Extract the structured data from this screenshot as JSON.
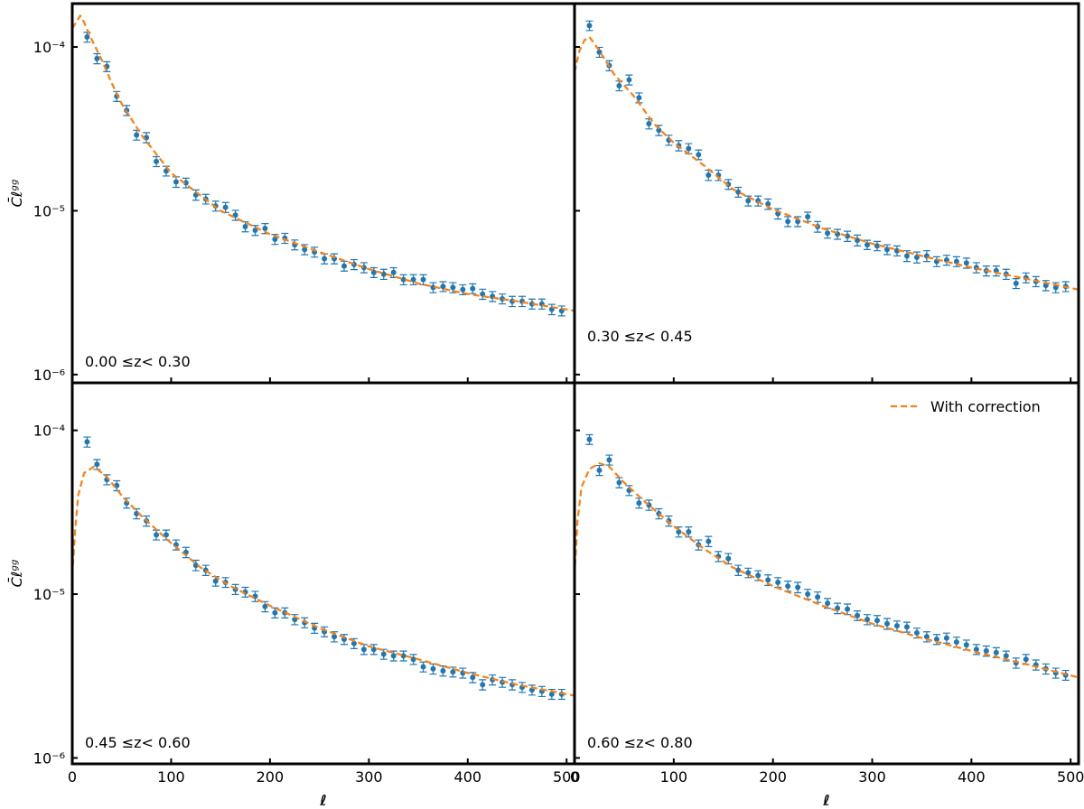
{
  "chart_data": [
    {
      "type": "scatter",
      "annotation": "0.00 ≤z< 0.30",
      "ylabel": "C̄ℓᵍᵍ",
      "ylog": true,
      "xlim": [
        0,
        508
      ],
      "ylim": [
        8.9e-07,
        0.000184
      ],
      "xticks": [
        0,
        100,
        200,
        300,
        400,
        500
      ],
      "show_xtick_labels": false,
      "yticks": [
        {
          "value": 0.0001,
          "label": "10⁻⁴"
        },
        {
          "value": 1e-05,
          "label": "10⁻⁵"
        },
        {
          "value": 1e-06,
          "label": "10⁻⁶"
        }
      ],
      "series": [
        {
          "type": "scatter",
          "color": "#1f77b4",
          "x": [
            15,
            25,
            35,
            45,
            55,
            65,
            75,
            85,
            95,
            105,
            115,
            125,
            135,
            145,
            155,
            165,
            175,
            185,
            195,
            205,
            215,
            225,
            235,
            245,
            255,
            265,
            275,
            285,
            295,
            305,
            315,
            325,
            335,
            345,
            355,
            365,
            375,
            385,
            395,
            405,
            415,
            425,
            435,
            445,
            455,
            465,
            475,
            485,
            495
          ],
          "values": [
            0.000115,
            8.5e-05,
            7.6e-05,
            5e-05,
            4.1e-05,
            2.9e-05,
            2.8e-05,
            2e-05,
            1.75e-05,
            1.5e-05,
            1.48e-05,
            1.25e-05,
            1.18e-05,
            1.07e-05,
            1.05e-05,
            9.4e-06,
            8e-06,
            7.6e-06,
            7.8e-06,
            6.7e-06,
            6.8e-06,
            6.2e-06,
            5.8e-06,
            5.6e-06,
            5.1e-06,
            5.1e-06,
            4.6e-06,
            4.7e-06,
            4.5e-06,
            4.2e-06,
            4.1e-06,
            4.2e-06,
            3.8e-06,
            3.8e-06,
            3.8e-06,
            3.4e-06,
            3.45e-06,
            3.4e-06,
            3.3e-06,
            3.35e-06,
            3.1e-06,
            3e-06,
            2.9e-06,
            2.8e-06,
            2.8e-06,
            2.7e-06,
            2.7e-06,
            2.5e-06,
            2.45e-06
          ],
          "errors": [
            8e-06,
            6e-06,
            5.3e-06,
            3.5e-06,
            2.9e-06,
            2e-06,
            2e-06,
            1.4e-06,
            1.2e-06,
            1.1e-06,
            1e-06,
            9e-07,
            8e-07,
            7.5e-07,
            7.4e-07,
            6.6e-07,
            5.6e-07,
            5.3e-07,
            5.5e-07,
            4.7e-07,
            4.8e-07,
            4.3e-07,
            4.1e-07,
            3.9e-07,
            3.6e-07,
            3.6e-07,
            3.2e-07,
            3.3e-07,
            3.2e-07,
            2.9e-07,
            2.9e-07,
            2.9e-07,
            2.7e-07,
            2.7e-07,
            2.7e-07,
            2.4e-07,
            2.4e-07,
            2.4e-07,
            2.3e-07,
            2.3e-07,
            2.2e-07,
            2.1e-07,
            2e-07,
            2e-07,
            2e-07,
            1.9e-07,
            1.9e-07,
            1.8e-07,
            1.7e-07
          ]
        },
        {
          "type": "line",
          "color": "#ff7f0e",
          "dashed": true,
          "x": [
            0,
            8,
            10,
            20,
            30,
            40,
            50,
            70,
            100,
            150,
            200,
            250,
            300,
            350,
            400,
            450,
            508
          ],
          "values": [
            0.00013,
            0.000155,
            0.00015,
            0.00011,
            8.3e-05,
            6e-05,
            4.5e-05,
            2.9e-05,
            1.7e-05,
            1e-05,
            7.2e-06,
            5.6e-06,
            4.4e-06,
            3.6e-06,
            3.1e-06,
            2.8e-06,
            2.45e-06
          ]
        }
      ]
    },
    {
      "type": "scatter",
      "annotation": "0.30 ≤z< 0.45",
      "ylog": true,
      "xlim": [
        0,
        508
      ],
      "ylim": [
        8.9e-07,
        0.000184
      ],
      "xticks": [
        0,
        100,
        200,
        300,
        400,
        500
      ],
      "show_xtick_labels": false,
      "yticks": [
        0.0001,
        1e-05,
        1e-06
      ],
      "show_ytick_labels": false,
      "series": [
        {
          "type": "scatter",
          "color": "#1f77b4",
          "x": [
            15,
            25,
            35,
            45,
            55,
            65,
            75,
            85,
            95,
            105,
            115,
            125,
            135,
            145,
            155,
            165,
            175,
            185,
            195,
            205,
            215,
            225,
            235,
            245,
            255,
            265,
            275,
            285,
            295,
            305,
            315,
            325,
            335,
            345,
            355,
            365,
            375,
            385,
            395,
            405,
            415,
            425,
            435,
            445,
            455,
            465,
            475,
            485,
            495
          ],
          "values": [
            0.000135,
            9.3e-05,
            7.7e-05,
            5.8e-05,
            6.3e-05,
            4.9e-05,
            3.4e-05,
            3.1e-05,
            2.7e-05,
            2.5e-05,
            2.4e-05,
            2.2e-05,
            1.65e-05,
            1.65e-05,
            1.45e-05,
            1.3e-05,
            1.15e-05,
            1.15e-05,
            1.1e-05,
            9.6e-06,
            8.6e-06,
            8.6e-06,
            9.2e-06,
            8e-06,
            7.3e-06,
            7.2e-06,
            7e-06,
            6.6e-06,
            6.2e-06,
            6.1e-06,
            5.8e-06,
            5.7e-06,
            5.3e-06,
            5.2e-06,
            5.3e-06,
            4.9e-06,
            5e-06,
            4.9e-06,
            4.8e-06,
            4.5e-06,
            4.3e-06,
            4.3e-06,
            4.1e-06,
            3.6e-06,
            3.9e-06,
            3.7e-06,
            3.5e-06,
            3.4e-06,
            3.45e-06
          ],
          "errors": [
            9e-06,
            6.5e-06,
            5.4e-06,
            4e-06,
            4.4e-06,
            3.4e-06,
            2.4e-06,
            2.2e-06,
            1.9e-06,
            1.8e-06,
            1.7e-06,
            1.5e-06,
            1.2e-06,
            1.2e-06,
            1e-06,
            9e-07,
            8e-07,
            8e-07,
            8e-07,
            7e-07,
            6e-07,
            6e-07,
            6e-07,
            6e-07,
            5e-07,
            5e-07,
            5e-07,
            5e-07,
            4e-07,
            4e-07,
            4e-07,
            4e-07,
            4e-07,
            4e-07,
            4e-07,
            3.4e-07,
            3.5e-07,
            3.4e-07,
            3.4e-07,
            3.2e-07,
            3e-07,
            3e-07,
            2.9e-07,
            2.5e-07,
            2.7e-07,
            2.6e-07,
            2.5e-07,
            2.4e-07,
            2.4e-07
          ]
        },
        {
          "type": "line",
          "color": "#ff7f0e",
          "dashed": true,
          "x": [
            0,
            5,
            10,
            15,
            20,
            30,
            40,
            60,
            80,
            100,
            130,
            160,
            200,
            250,
            300,
            350,
            400,
            450,
            508
          ],
          "values": [
            7e-05,
            9.5e-05,
            0.00011,
            0.000115,
            0.000105,
            8.5e-05,
            6.8e-05,
            5e-05,
            3.4e-05,
            2.6e-05,
            1.9e-05,
            1.35e-05,
            1.02e-05,
            7.8e-06,
            6.3e-06,
            5.3e-06,
            4.5e-06,
            3.9e-06,
            3.3e-06
          ]
        }
      ]
    },
    {
      "type": "scatter",
      "annotation": "0.45 ≤z< 0.60",
      "ylabel": "C̄ℓᵍᵍ",
      "xlabel": "ℓ",
      "ylog": true,
      "xlim": [
        0,
        508
      ],
      "ylim": [
        9.2e-07,
        0.000195
      ],
      "xticks": [
        0,
        100,
        200,
        300,
        400,
        500
      ],
      "yticks": [
        {
          "value": 0.0001,
          "label": "10⁻⁴"
        },
        {
          "value": 1e-05,
          "label": "10⁻⁵"
        },
        {
          "value": 1e-06,
          "label": "10⁻⁶"
        }
      ],
      "series": [
        {
          "type": "scatter",
          "color": "#1f77b4",
          "x": [
            15,
            25,
            35,
            45,
            55,
            65,
            75,
            85,
            95,
            105,
            115,
            125,
            135,
            145,
            155,
            165,
            175,
            185,
            195,
            205,
            215,
            225,
            235,
            245,
            255,
            265,
            275,
            285,
            295,
            305,
            315,
            325,
            335,
            345,
            355,
            365,
            375,
            385,
            395,
            405,
            415,
            425,
            435,
            445,
            455,
            465,
            475,
            485,
            495
          ],
          "values": [
            8.5e-05,
            6.2e-05,
            5e-05,
            4.6e-05,
            3.6e-05,
            3.1e-05,
            2.8e-05,
            2.3e-05,
            2.3e-05,
            2e-05,
            1.8e-05,
            1.5e-05,
            1.4e-05,
            1.2e-05,
            1.18e-05,
            1.07e-05,
            1.03e-05,
            9.7e-06,
            8.4e-06,
            7.7e-06,
            7.7e-06,
            7e-06,
            6.7e-06,
            6.2e-06,
            5.9e-06,
            5.5e-06,
            5.3e-06,
            5e-06,
            4.6e-06,
            4.6e-06,
            4.3e-06,
            4.2e-06,
            4.2e-06,
            4e-06,
            3.6e-06,
            3.5e-06,
            3.4e-06,
            3.35e-06,
            3.3e-06,
            3.1e-06,
            2.8e-06,
            3e-06,
            2.9e-06,
            2.8e-06,
            2.7e-06,
            2.6e-06,
            2.55e-06,
            2.45e-06,
            2.45e-06
          ],
          "errors": [
            6e-06,
            4.3e-06,
            3.5e-06,
            3.2e-06,
            2.5e-06,
            2.2e-06,
            2e-06,
            1.6e-06,
            1.6e-06,
            1.4e-06,
            1.3e-06,
            1.1e-06,
            1e-06,
            8e-07,
            8e-07,
            7.5e-07,
            7e-07,
            7e-07,
            6e-07,
            5.4e-07,
            5.4e-07,
            5e-07,
            4.7e-07,
            4.3e-07,
            4.1e-07,
            3.9e-07,
            3.7e-07,
            3.5e-07,
            3.2e-07,
            3.2e-07,
            3e-07,
            2.9e-07,
            2.9e-07,
            2.8e-07,
            2.5e-07,
            2.5e-07,
            2.4e-07,
            2.3e-07,
            2.3e-07,
            2.2e-07,
            2e-07,
            2.1e-07,
            2e-07,
            2e-07,
            1.9e-07,
            1.8e-07,
            1.8e-07,
            1.7e-07,
            1.7e-07
          ]
        },
        {
          "type": "line",
          "color": "#ff7f0e",
          "dashed": true,
          "x": [
            0,
            3,
            6,
            12,
            22,
            35,
            50,
            70,
            100,
            130,
            160,
            200,
            250,
            300,
            350,
            400,
            450,
            508
          ],
          "values": [
            1.3e-05,
            2.5e-05,
            4e-05,
            5.5e-05,
            6e-05,
            5.2e-05,
            4e-05,
            3e-05,
            2.05e-05,
            1.45e-05,
            1.12e-05,
            8.5e-06,
            6.2e-06,
            4.8e-06,
            4e-06,
            3.3e-06,
            2.8e-06,
            2.4e-06
          ]
        }
      ]
    },
    {
      "type": "scatter",
      "annotation": "0.60 ≤z< 0.80",
      "xlabel": "ℓ",
      "ylog": true,
      "legend": "upper right",
      "xlim": [
        0,
        508
      ],
      "ylim": [
        9.2e-07,
        0.000195
      ],
      "xticks": [
        0,
        100,
        200,
        300,
        400,
        500
      ],
      "yticks": [
        0.0001,
        1e-05,
        1e-06
      ],
      "show_ytick_labels": false,
      "series": [
        {
          "type": "scatter",
          "color": "#1f77b4",
          "x": [
            15,
            25,
            35,
            45,
            55,
            65,
            75,
            85,
            95,
            105,
            115,
            125,
            135,
            145,
            155,
            165,
            175,
            185,
            195,
            205,
            215,
            225,
            235,
            245,
            255,
            265,
            275,
            285,
            295,
            305,
            315,
            325,
            335,
            345,
            355,
            365,
            375,
            385,
            395,
            405,
            415,
            425,
            435,
            445,
            455,
            465,
            475,
            485,
            495
          ],
          "values": [
            8.8e-05,
            5.7e-05,
            6.6e-05,
            4.8e-05,
            4.3e-05,
            3.6e-05,
            3.5e-05,
            3.1e-05,
            2.8e-05,
            2.4e-05,
            2.4e-05,
            2e-05,
            2.1e-05,
            1.7e-05,
            1.65e-05,
            1.4e-05,
            1.35e-05,
            1.3e-05,
            1.22e-05,
            1.18e-05,
            1.12e-05,
            1.1e-05,
            1e-05,
            9.6e-06,
            8.8e-06,
            8.2e-06,
            8.1e-06,
            7.4e-06,
            7e-06,
            6.9e-06,
            6.6e-06,
            6.4e-06,
            6.3e-06,
            5.8e-06,
            5.5e-06,
            5.3e-06,
            5.4e-06,
            5.1e-06,
            4.9e-06,
            4.6e-06,
            4.5e-06,
            4.4e-06,
            4.2e-06,
            3.8e-06,
            4e-06,
            3.7e-06,
            3.5e-06,
            3.3e-06,
            3.2e-06
          ],
          "errors": [
            6e-06,
            4e-06,
            4.6e-06,
            3.4e-06,
            3e-06,
            2.5e-06,
            2.5e-06,
            2.2e-06,
            2e-06,
            1.7e-06,
            1.7e-06,
            1.4e-06,
            1.5e-06,
            1.2e-06,
            1.2e-06,
            1e-06,
            9e-07,
            9e-07,
            9e-07,
            8e-07,
            8e-07,
            8e-07,
            7e-07,
            7e-07,
            6e-07,
            6e-07,
            6e-07,
            5e-07,
            5e-07,
            5e-07,
            5e-07,
            4.5e-07,
            4.4e-07,
            4e-07,
            3.9e-07,
            3.7e-07,
            3.8e-07,
            3.6e-07,
            3.4e-07,
            3.2e-07,
            3.2e-07,
            3.1e-07,
            2.9e-07,
            2.7e-07,
            2.8e-07,
            2.6e-07,
            2.5e-07,
            2.3e-07,
            2.2e-07
          ]
        },
        {
          "type": "line",
          "name": "With correction",
          "color": "#ff7f0e",
          "dashed": true,
          "x": [
            0,
            3,
            7,
            15,
            25,
            35,
            50,
            70,
            100,
            130,
            160,
            200,
            250,
            300,
            350,
            400,
            450,
            508
          ],
          "values": [
            1.3e-05,
            2.8e-05,
            4.5e-05,
            5.8e-05,
            6.3e-05,
            6e-05,
            4.8e-05,
            3.7e-05,
            2.6e-05,
            1.9e-05,
            1.45e-05,
            1.12e-05,
            8.5e-06,
            6.6e-06,
            5.4e-06,
            4.5e-06,
            3.8e-06,
            3.1e-06
          ]
        }
      ]
    }
  ]
}
